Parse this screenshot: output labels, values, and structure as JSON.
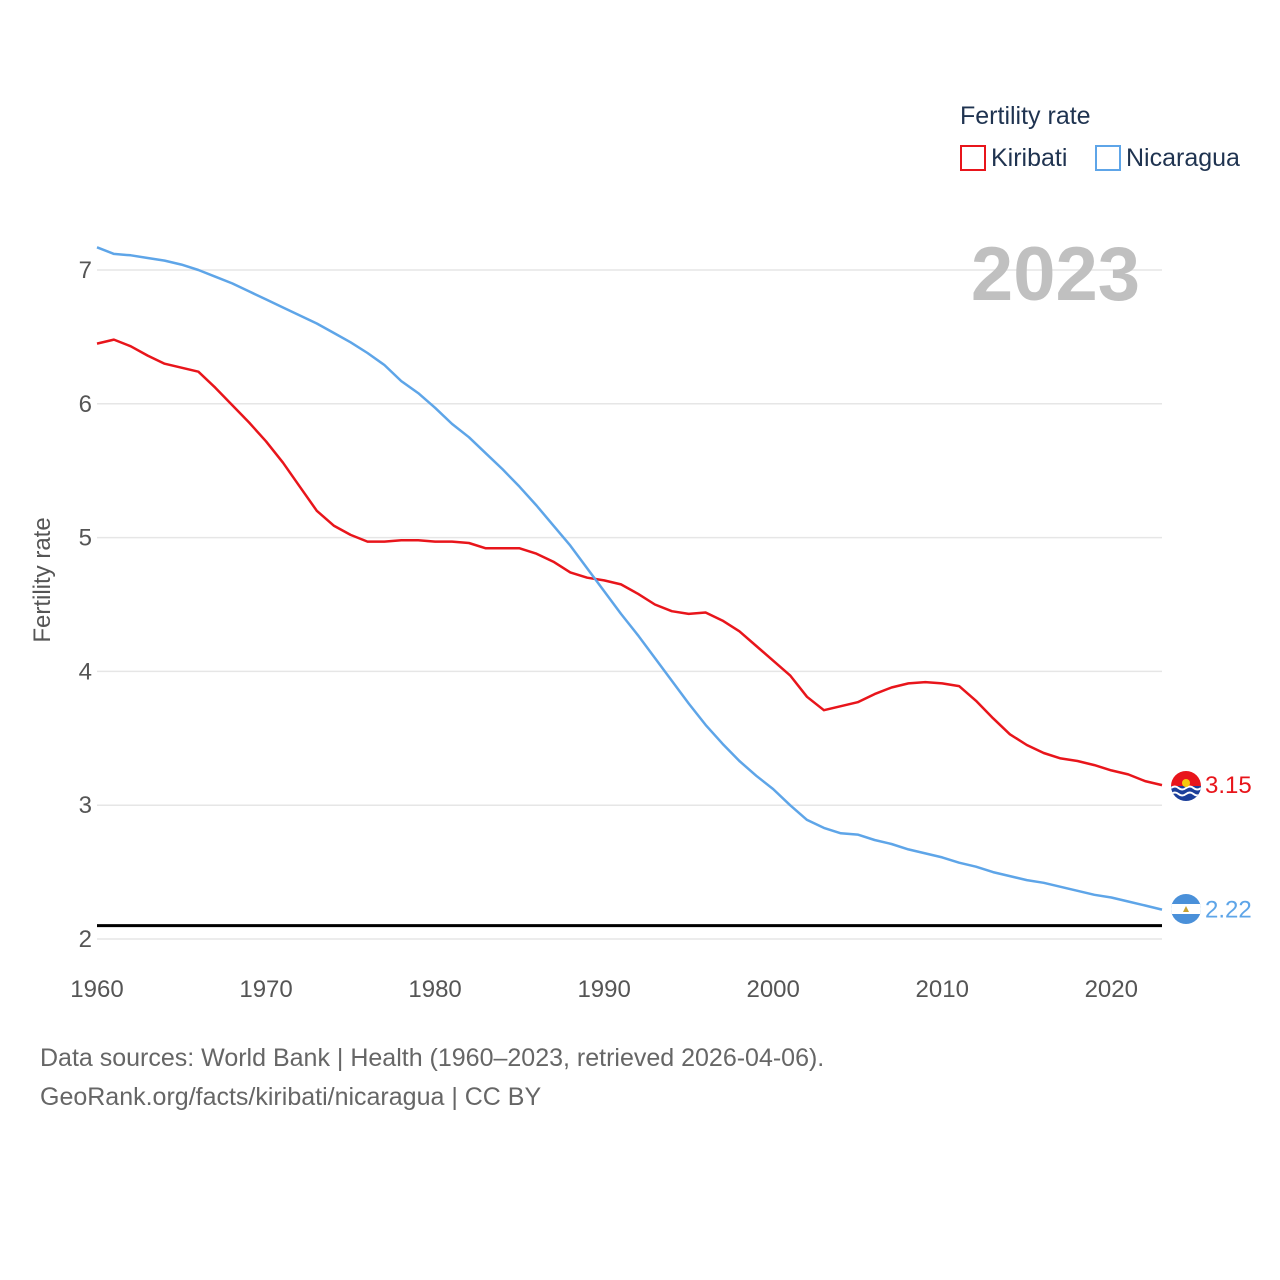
{
  "chart_data": {
    "type": "line",
    "title": "",
    "ylabel": "Fertility rate",
    "xlabel": "",
    "xlim": [
      1960,
      2023
    ],
    "ylim": [
      2,
      7.4
    ],
    "xticks": [
      1960,
      1970,
      1980,
      1990,
      2000,
      2010,
      2020
    ],
    "yticks": [
      2,
      3,
      4,
      5,
      6,
      7
    ],
    "reference_line": 2.1,
    "current_year": "2023",
    "legend_title": "Fertility rate",
    "legend_position": "top-right",
    "x": [
      1960,
      1961,
      1962,
      1963,
      1964,
      1965,
      1966,
      1967,
      1968,
      1969,
      1970,
      1971,
      1972,
      1973,
      1974,
      1975,
      1976,
      1977,
      1978,
      1979,
      1980,
      1981,
      1982,
      1983,
      1984,
      1985,
      1986,
      1987,
      1988,
      1989,
      1990,
      1991,
      1992,
      1993,
      1994,
      1995,
      1996,
      1997,
      1998,
      1999,
      2000,
      2001,
      2002,
      2003,
      2004,
      2005,
      2006,
      2007,
      2008,
      2009,
      2010,
      2011,
      2012,
      2013,
      2014,
      2015,
      2016,
      2017,
      2018,
      2019,
      2020,
      2021,
      2022,
      2023
    ],
    "series": [
      {
        "name": "Kiribati",
        "color": "#e8151b",
        "end_label": "3.15",
        "flag": "kiribati-flag",
        "values": [
          6.45,
          6.48,
          6.43,
          6.36,
          6.3,
          6.27,
          6.24,
          6.12,
          5.99,
          5.86,
          5.72,
          5.56,
          5.38,
          5.2,
          5.09,
          5.02,
          4.97,
          4.97,
          4.98,
          4.98,
          4.97,
          4.97,
          4.96,
          4.92,
          4.92,
          4.92,
          4.88,
          4.82,
          4.74,
          4.7,
          4.68,
          4.65,
          4.58,
          4.5,
          4.45,
          4.43,
          4.44,
          4.38,
          4.3,
          4.19,
          4.08,
          3.97,
          3.81,
          3.71,
          3.74,
          3.77,
          3.83,
          3.88,
          3.91,
          3.92,
          3.91,
          3.89,
          3.78,
          3.65,
          3.53,
          3.45,
          3.39,
          3.35,
          3.33,
          3.3,
          3.26,
          3.23,
          3.18,
          3.15
        ]
      },
      {
        "name": "Nicaragua",
        "color": "#5ea5e8",
        "end_label": "2.22",
        "flag": "nicaragua-flag",
        "values": [
          7.17,
          7.12,
          7.11,
          7.09,
          7.07,
          7.04,
          7.0,
          6.95,
          6.9,
          6.84,
          6.78,
          6.72,
          6.66,
          6.6,
          6.53,
          6.46,
          6.38,
          6.29,
          6.17,
          6.08,
          5.97,
          5.85,
          5.75,
          5.63,
          5.51,
          5.38,
          5.24,
          5.09,
          4.94,
          4.77,
          4.6,
          4.43,
          4.27,
          4.1,
          3.93,
          3.76,
          3.6,
          3.46,
          3.33,
          3.22,
          3.12,
          3.0,
          2.89,
          2.83,
          2.79,
          2.78,
          2.74,
          2.71,
          2.67,
          2.64,
          2.61,
          2.57,
          2.54,
          2.5,
          2.47,
          2.44,
          2.42,
          2.39,
          2.36,
          2.33,
          2.31,
          2.28,
          2.25,
          2.22
        ]
      }
    ]
  },
  "footer": {
    "line1": "Data sources: World Bank | Health (1960–2023, retrieved 2026-04-06).",
    "line2": "GeoRank.org/facts/kiribati/nicaragua | CC BY"
  }
}
